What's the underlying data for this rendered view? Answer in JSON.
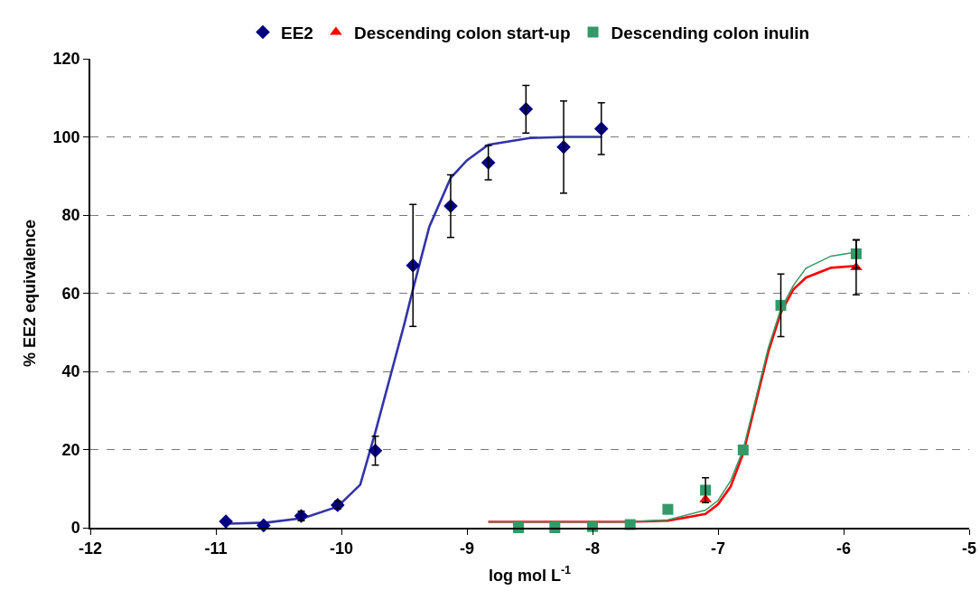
{
  "chart_data": {
    "type": "scatter",
    "xlabel": "log mol L$^{-1}$",
    "ylabel": "% EE2 equivalence",
    "xlim": [
      -12,
      -5
    ],
    "xticks": [
      -12,
      -11,
      -10,
      -9,
      -8,
      -7,
      -6,
      -5
    ],
    "ylim": [
      0,
      120
    ],
    "yticks": [
      0,
      20,
      40,
      60,
      80,
      100,
      120
    ],
    "grid": "y",
    "legend": "top",
    "series": [
      {
        "name": "EE2",
        "marker": "diamond",
        "color": "#000080",
        "x": [
          -10.92,
          -10.62,
          -10.32,
          -10.03,
          -9.73,
          -9.43,
          -9.13,
          -8.83,
          -8.53,
          -8.23,
          -7.93
        ],
        "values": [
          1.6,
          0.6,
          3.0,
          5.8,
          19.7,
          67.1,
          82.3,
          93.4,
          107.1,
          97.4,
          102.1
        ],
        "errors": [
          null,
          null,
          1.2,
          1,
          3.7,
          15.6,
          8,
          4.4,
          6.1,
          11.8,
          6.6
        ]
      },
      {
        "name": "Descending colon start-up",
        "marker": "triangle",
        "color": "#ff0000",
        "x": [
          -7.1,
          -5.9
        ],
        "values": [
          7.2,
          66.6
        ],
        "errors": [
          null,
          7
        ]
      },
      {
        "name": "Descending colon inulin",
        "marker": "square",
        "color": "#339966",
        "x": [
          -8.59,
          -8.3,
          -8.0,
          -7.7,
          -7.4,
          -7.1,
          -6.8,
          -6.5,
          -5.9
        ],
        "values": [
          0,
          0,
          0.3,
          0.8,
          4.7,
          9.6,
          19.9,
          56.9,
          70.1
        ],
        "errors": [
          null,
          null,
          null,
          null,
          null,
          3.2,
          null,
          8,
          3.6
        ]
      },
      {
        "type": "line",
        "line_style": "solid",
        "color": "#3333aa",
        "x": [
          -10.92,
          -10.6,
          -10.3,
          -10.03,
          -9.85,
          -9.73,
          -9.6,
          -9.5,
          -9.43,
          -9.3,
          -9.13,
          -9.0,
          -8.83,
          -8.5,
          -8.2,
          -7.93
        ],
        "values": [
          1,
          1.3,
          2.5,
          5.4,
          11,
          24.4,
          40,
          52,
          61,
          77,
          89.5,
          94,
          98,
          99.7,
          100,
          100
        ]
      },
      {
        "type": "line",
        "line_style": "solid",
        "color": "#ff0000",
        "x": [
          -8.83,
          -7.7,
          -7.4,
          -7.1,
          -7.0,
          -6.9,
          -6.8,
          -6.7,
          -6.6,
          -6.5,
          -6.4,
          -6.3,
          -6.1,
          -5.9
        ],
        "values": [
          1.5,
          1.5,
          1.8,
          3.5,
          6,
          10.5,
          19,
          32,
          45,
          55,
          61,
          64,
          66.5,
          67
        ]
      },
      {
        "type": "line",
        "line_style": "solid",
        "color": "#339966",
        "x": [
          -8.83,
          -7.7,
          -7.4,
          -7.1,
          -7.0,
          -6.9,
          -6.8,
          -6.7,
          -6.6,
          -6.5,
          -6.4,
          -6.3,
          -6.1,
          -5.9
        ],
        "values": [
          1.5,
          1.5,
          2,
          4.5,
          7,
          12,
          20,
          33,
          46,
          56,
          62,
          66.4,
          69.5,
          70.5
        ]
      }
    ]
  }
}
